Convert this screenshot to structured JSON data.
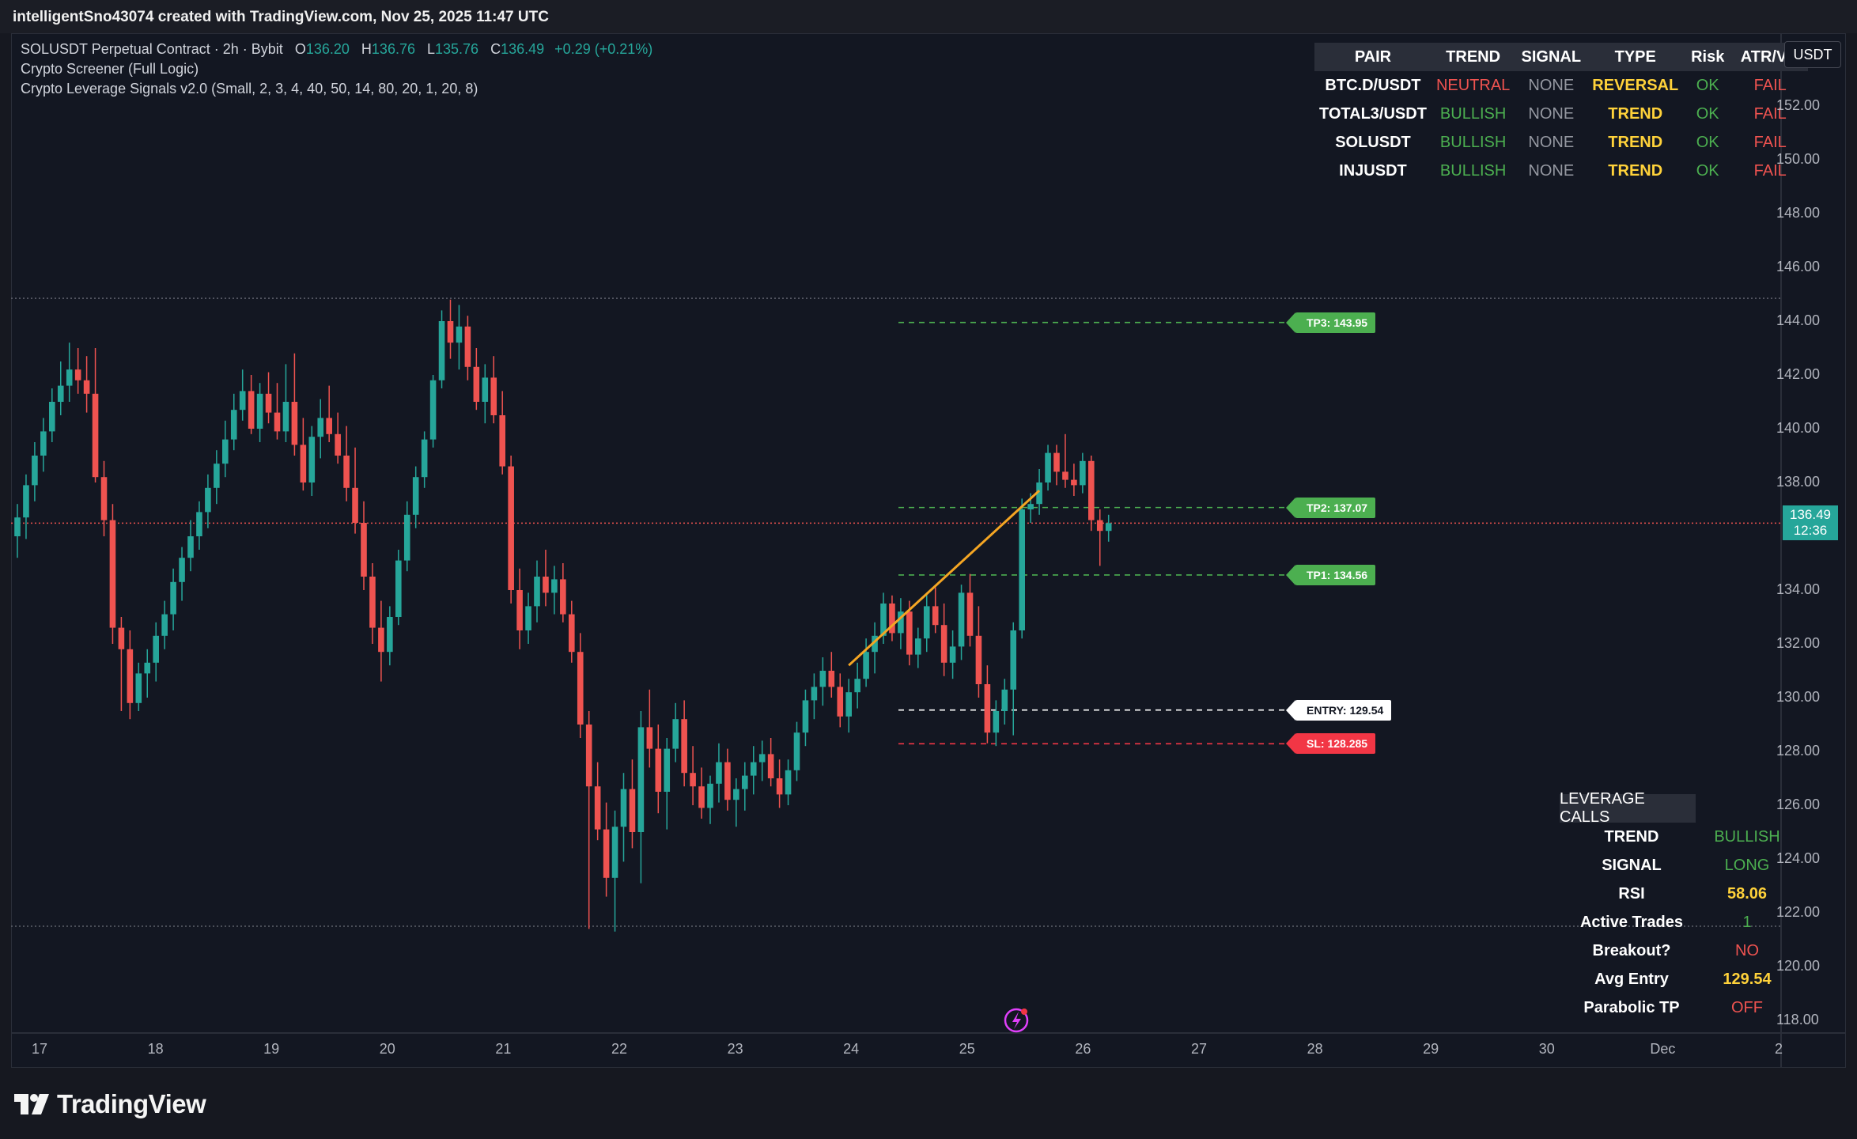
{
  "attribution": "intelligentSno43074 created with TradingView.com, Nov 25, 2025 11:47 UTC",
  "brand": "TradingView",
  "legend": {
    "symbol": "SOLUSDT Perpetual Contract · 2h · Bybit",
    "o_label": "O",
    "o": "136.20",
    "h_label": "H",
    "h": "136.76",
    "l_label": "L",
    "l": "135.76",
    "c_label": "C",
    "c": "136.49",
    "change": "+0.29 (+0.21%)",
    "indicator1": "Crypto Screener (Full Logic)",
    "indicator2": "Crypto Leverage Signals v2.0 (Small, 2, 3, 4, 40, 50, 14, 80, 20, 1, 20, 8)"
  },
  "screener": {
    "headers": [
      "PAIR",
      "TREND",
      "SIGNAL",
      "TYPE",
      "Risk",
      "ATR/Vol"
    ],
    "rows": [
      {
        "pair": "BTC.D/USDT",
        "trend": "NEUTRAL",
        "signal": "NONE",
        "type": "REVERSAL",
        "risk": "OK",
        "atr": "FAIL"
      },
      {
        "pair": "TOTAL3/USDT",
        "trend": "BULLISH",
        "signal": "NONE",
        "type": "TREND",
        "risk": "OK",
        "atr": "FAIL"
      },
      {
        "pair": "SOLUSDT",
        "trend": "BULLISH",
        "signal": "NONE",
        "type": "TREND",
        "risk": "OK",
        "atr": "FAIL"
      },
      {
        "pair": "INJUSDT",
        "trend": "BULLISH",
        "signal": "NONE",
        "type": "TREND",
        "risk": "OK",
        "atr": "FAIL"
      }
    ]
  },
  "leverage": {
    "title": "LEVERAGE CALLS",
    "rows": [
      {
        "label": "TREND",
        "value": "BULLISH",
        "color": "#4caf50"
      },
      {
        "label": "SIGNAL",
        "value": "LONG",
        "color": "#4caf50"
      },
      {
        "label": "RSI",
        "value": "58.06",
        "color": "#ffd23a"
      },
      {
        "label": "Active Trades",
        "value": "1",
        "color": "#4caf50"
      },
      {
        "label": "Breakout?",
        "value": "NO",
        "color": "#ef5350"
      },
      {
        "label": "Avg Entry",
        "value": "129.54",
        "color": "#ffd23a"
      },
      {
        "label": "Parabolic TP",
        "value": "OFF",
        "color": "#ef5350"
      }
    ]
  },
  "levels": {
    "tp3": "TP3: 143.95",
    "tp2": "TP2: 137.07",
    "tp1": "TP1: 134.56",
    "entry": "ENTRY: 129.54",
    "sl": "SL: 128.285"
  },
  "price_scale": {
    "currency": "USDT",
    "ticks": [
      "152.00",
      "150.00",
      "148.00",
      "146.00",
      "144.00",
      "142.00",
      "140.00",
      "138.00",
      "134.00",
      "132.00",
      "130.00",
      "128.00",
      "126.00",
      "124.00",
      "122.00",
      "120.00",
      "118.00"
    ],
    "last_price": "136.49",
    "countdown": "12:36"
  },
  "time_scale": {
    "ticks": [
      "17",
      "18",
      "19",
      "20",
      "21",
      "22",
      "23",
      "24",
      "25",
      "26",
      "27",
      "28",
      "29",
      "30",
      "Dec",
      "2"
    ]
  },
  "colors": {
    "up": "#26a69a",
    "down": "#ef5350",
    "background": "#131722",
    "zigzag": "#f5a623"
  },
  "chart_data": {
    "type": "candlestick",
    "y_range": [
      116.5,
      153.2
    ],
    "timeframe": "2h",
    "candles": [
      [
        136.0,
        137.2,
        135.2,
        136.7
      ],
      [
        136.7,
        138.3,
        135.9,
        137.9
      ],
      [
        137.9,
        139.5,
        137.3,
        139.0
      ],
      [
        139.0,
        140.4,
        138.4,
        139.9
      ],
      [
        139.9,
        141.5,
        139.5,
        141.0
      ],
      [
        141.0,
        142.5,
        140.5,
        141.6
      ],
      [
        141.6,
        143.2,
        141.0,
        142.2
      ],
      [
        142.2,
        143.0,
        141.3,
        141.8
      ],
      [
        141.8,
        142.7,
        140.6,
        141.3
      ],
      [
        141.3,
        143.0,
        138.0,
        138.2
      ],
      [
        138.2,
        138.8,
        136.0,
        136.6
      ],
      [
        136.6,
        137.2,
        132.0,
        132.6
      ],
      [
        132.6,
        133.0,
        129.5,
        131.8
      ],
      [
        131.8,
        132.5,
        129.2,
        129.8
      ],
      [
        129.8,
        131.3,
        129.5,
        130.9
      ],
      [
        130.9,
        131.8,
        130.0,
        131.3
      ],
      [
        131.3,
        132.8,
        130.6,
        132.3
      ],
      [
        132.3,
        133.6,
        131.8,
        133.1
      ],
      [
        133.1,
        134.8,
        132.5,
        134.3
      ],
      [
        134.3,
        135.6,
        133.6,
        135.2
      ],
      [
        135.2,
        136.6,
        134.7,
        136.0
      ],
      [
        136.0,
        137.3,
        135.5,
        136.9
      ],
      [
        136.9,
        138.3,
        136.3,
        137.8
      ],
      [
        137.8,
        139.2,
        137.2,
        138.7
      ],
      [
        138.7,
        140.3,
        138.2,
        139.6
      ],
      [
        139.6,
        141.3,
        139.2,
        140.7
      ],
      [
        140.7,
        142.2,
        140.3,
        141.4
      ],
      [
        141.4,
        142.0,
        139.8,
        140.0
      ],
      [
        140.0,
        141.7,
        139.5,
        141.3
      ],
      [
        141.3,
        142.1,
        140.2,
        140.6
      ],
      [
        140.6,
        141.7,
        139.6,
        139.9
      ],
      [
        139.9,
        142.4,
        139.5,
        141.0
      ],
      [
        141.0,
        142.8,
        139.0,
        139.4
      ],
      [
        139.4,
        140.4,
        137.7,
        138.0
      ],
      [
        138.0,
        140.1,
        137.5,
        139.7
      ],
      [
        139.7,
        141.1,
        138.9,
        140.4
      ],
      [
        140.4,
        141.6,
        139.5,
        139.8
      ],
      [
        139.8,
        140.6,
        138.7,
        139.0
      ],
      [
        139.0,
        140.1,
        137.3,
        137.8
      ],
      [
        137.8,
        139.3,
        136.1,
        136.5
      ],
      [
        136.5,
        137.3,
        134.0,
        134.5
      ],
      [
        134.5,
        135.0,
        132.0,
        132.6
      ],
      [
        132.6,
        133.6,
        130.6,
        131.7
      ],
      [
        131.7,
        133.4,
        131.2,
        133.0
      ],
      [
        133.0,
        135.5,
        132.7,
        135.1
      ],
      [
        135.1,
        137.3,
        134.7,
        136.8
      ],
      [
        136.8,
        138.6,
        136.3,
        138.2
      ],
      [
        138.2,
        139.9,
        137.8,
        139.6
      ],
      [
        139.6,
        142.0,
        139.3,
        141.8
      ],
      [
        141.8,
        144.4,
        141.5,
        144.0
      ],
      [
        144.0,
        144.8,
        142.6,
        143.2
      ],
      [
        143.2,
        144.6,
        142.2,
        143.8
      ],
      [
        143.8,
        144.2,
        141.8,
        142.3
      ],
      [
        142.3,
        143.0,
        140.7,
        141.0
      ],
      [
        141.0,
        142.4,
        140.2,
        141.9
      ],
      [
        141.9,
        142.7,
        140.2,
        140.5
      ],
      [
        140.5,
        141.4,
        138.3,
        138.6
      ],
      [
        138.6,
        139.0,
        133.5,
        134.0
      ],
      [
        134.0,
        134.8,
        131.8,
        132.5
      ],
      [
        132.5,
        133.9,
        132.0,
        133.4
      ],
      [
        133.4,
        135.1,
        132.8,
        134.5
      ],
      [
        134.5,
        135.5,
        133.4,
        133.9
      ],
      [
        133.9,
        134.9,
        133.1,
        134.4
      ],
      [
        134.4,
        135.0,
        132.8,
        133.1
      ],
      [
        133.1,
        133.6,
        131.3,
        131.7
      ],
      [
        131.7,
        132.4,
        128.5,
        129.0
      ],
      [
        129.0,
        129.5,
        121.4,
        126.7
      ],
      [
        126.7,
        127.6,
        124.7,
        125.1
      ],
      [
        125.1,
        126.1,
        122.6,
        123.3
      ],
      [
        123.3,
        125.8,
        121.3,
        125.2
      ],
      [
        125.2,
        127.2,
        123.9,
        126.6
      ],
      [
        126.6,
        127.7,
        124.4,
        125.0
      ],
      [
        125.0,
        129.5,
        123.1,
        128.9
      ],
      [
        128.9,
        130.3,
        127.4,
        128.1
      ],
      [
        128.1,
        129.0,
        125.7,
        126.5
      ],
      [
        126.5,
        128.5,
        125.1,
        128.1
      ],
      [
        128.1,
        129.8,
        127.6,
        129.2
      ],
      [
        129.2,
        129.9,
        126.7,
        127.2
      ],
      [
        127.2,
        128.2,
        126.0,
        126.7
      ],
      [
        126.7,
        127.4,
        125.5,
        125.9
      ],
      [
        125.9,
        127.1,
        125.3,
        126.8
      ],
      [
        126.8,
        128.3,
        126.1,
        127.6
      ],
      [
        127.6,
        128.1,
        125.8,
        126.2
      ],
      [
        126.2,
        127.0,
        125.2,
        126.6
      ],
      [
        126.6,
        127.6,
        125.8,
        127.1
      ],
      [
        127.1,
        128.2,
        126.4,
        127.6
      ],
      [
        127.6,
        128.4,
        126.9,
        127.9
      ],
      [
        127.9,
        128.5,
        126.7,
        127.0
      ],
      [
        127.0,
        127.7,
        125.9,
        126.4
      ],
      [
        126.4,
        127.7,
        126.0,
        127.3
      ],
      [
        127.3,
        129.1,
        126.9,
        128.7
      ],
      [
        128.7,
        130.3,
        128.2,
        129.9
      ],
      [
        129.9,
        130.9,
        129.2,
        130.4
      ],
      [
        130.4,
        131.5,
        129.7,
        131.0
      ],
      [
        131.0,
        131.7,
        130.0,
        130.4
      ],
      [
        130.4,
        130.9,
        128.9,
        129.3
      ],
      [
        129.3,
        130.7,
        128.7,
        130.2
      ],
      [
        130.2,
        131.3,
        129.6,
        130.7
      ],
      [
        130.7,
        132.2,
        130.4,
        131.7
      ],
      [
        131.7,
        132.8,
        130.9,
        132.3
      ],
      [
        132.3,
        133.9,
        132.0,
        133.5
      ],
      [
        133.5,
        133.8,
        132.1,
        132.4
      ],
      [
        132.4,
        133.7,
        131.8,
        133.2
      ],
      [
        133.2,
        133.6,
        131.2,
        131.6
      ],
      [
        131.6,
        132.6,
        131.1,
        132.2
      ],
      [
        132.2,
        133.9,
        131.7,
        133.4
      ],
      [
        133.4,
        134.1,
        132.4,
        132.7
      ],
      [
        132.7,
        133.5,
        130.8,
        131.3
      ],
      [
        131.3,
        132.5,
        130.7,
        131.9
      ],
      [
        131.9,
        134.2,
        131.4,
        133.9
      ],
      [
        133.9,
        134.6,
        131.9,
        132.3
      ],
      [
        132.3,
        133.4,
        130.0,
        130.5
      ],
      [
        130.5,
        131.2,
        128.3,
        128.7
      ],
      [
        128.7,
        129.9,
        128.2,
        129.5
      ],
      [
        129.5,
        130.7,
        129.0,
        130.3
      ],
      [
        130.3,
        132.8,
        128.6,
        132.5
      ],
      [
        132.5,
        137.4,
        132.2,
        137.0
      ],
      [
        137.0,
        137.6,
        136.5,
        137.2
      ],
      [
        137.2,
        138.5,
        136.8,
        138.0
      ],
      [
        138.0,
        139.4,
        137.7,
        139.1
      ],
      [
        139.1,
        139.4,
        137.9,
        138.4
      ],
      [
        138.4,
        139.8,
        137.8,
        138.1
      ],
      [
        138.1,
        138.7,
        137.5,
        137.9
      ],
      [
        137.9,
        139.1,
        137.6,
        138.8
      ],
      [
        138.8,
        139.0,
        136.2,
        136.6
      ],
      [
        136.6,
        137.0,
        134.9,
        136.2
      ],
      [
        136.2,
        136.8,
        135.8,
        136.49
      ]
    ],
    "price_line": 136.49,
    "levels": {
      "tp3": 143.95,
      "tp2": 137.07,
      "tp1": 134.56,
      "entry": 129.54,
      "sl": 128.285
    },
    "range_lines": [
      144.85,
      121.5
    ]
  }
}
